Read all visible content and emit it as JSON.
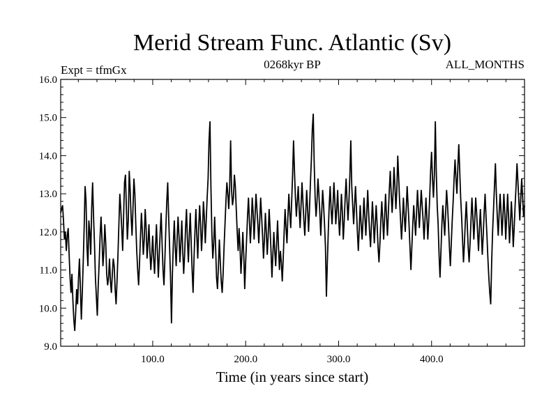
{
  "header": {
    "title": "Merid Stream Func. Atlantic (Sv)",
    "left": "Expt = tfmGx",
    "center": "0268kyr BP",
    "right": "ALL_MONTHS"
  },
  "chart_data": {
    "type": "line",
    "title": "Merid Stream Func. Atlantic (Sv)",
    "xlabel": "Time (in years since start)",
    "ylabel": "",
    "xlim": [
      1,
      500
    ],
    "ylim": [
      9.0,
      16.0
    ],
    "x_ticks": [
      100,
      200,
      300,
      400
    ],
    "x_tick_labels": [
      "100.0",
      "200.0",
      "300.0",
      "400.0"
    ],
    "y_ticks": [
      9.0,
      10.0,
      11.0,
      12.0,
      13.0,
      14.0,
      15.0,
      16.0
    ],
    "y_tick_labels": [
      "9.0",
      "10.0",
      "11.0",
      "12.0",
      "13.0",
      "14.0",
      "15.0",
      "16.0"
    ],
    "series": [
      {
        "name": "ALL_MONTHS",
        "x_start": 1,
        "x_step": 1,
        "color": "#000000",
        "values": [
          12.5,
          12.6,
          12.7,
          12.3,
          11.8,
          12.0,
          11.5,
          11.9,
          12.1,
          11.4,
          10.8,
          10.4,
          10.9,
          10.2,
          9.7,
          9.4,
          9.9,
          10.5,
          10.1,
          10.8,
          11.3,
          10.5,
          9.7,
          10.4,
          11.2,
          12.1,
          13.2,
          12.8,
          11.6,
          11.1,
          12.3,
          12.0,
          11.4,
          12.6,
          13.3,
          12.4,
          11.7,
          10.8,
          10.3,
          9.8,
          10.6,
          11.2,
          11.9,
          12.4,
          11.8,
          11.1,
          11.5,
          12.2,
          11.7,
          10.9,
          10.6,
          10.8,
          11.3,
          10.7,
          10.4,
          10.9,
          11.3,
          11.1,
          10.5,
          10.1,
          10.7,
          11.4,
          12.2,
          13.0,
          12.6,
          12.1,
          11.5,
          12.4,
          13.3,
          13.5,
          12.6,
          11.8,
          12.3,
          13.6,
          13.1,
          12.4,
          11.9,
          12.6,
          13.4,
          13.0,
          12.2,
          11.5,
          11.0,
          10.6,
          11.2,
          11.9,
          12.5,
          12.0,
          11.4,
          11.8,
          12.6,
          12.1,
          11.3,
          11.7,
          12.2,
          11.5,
          11.0,
          11.4,
          11.9,
          11.3,
          10.9,
          11.6,
          12.2,
          11.5,
          10.8,
          11.4,
          12.0,
          12.5,
          11.7,
          11.0,
          10.6,
          11.3,
          12.1,
          12.8,
          13.3,
          12.4,
          11.6,
          10.8,
          9.6,
          10.9,
          11.7,
          12.3,
          11.6,
          11.1,
          11.8,
          12.4,
          11.9,
          11.2,
          11.7,
          12.3,
          11.5,
          10.9,
          11.4,
          12.1,
          12.6,
          11.8,
          11.2,
          11.9,
          12.5,
          11.7,
          11.0,
          10.4,
          11.3,
          12.0,
          12.6,
          11.9,
          11.3,
          12.1,
          12.7,
          12.2,
          11.5,
          12.0,
          12.8,
          12.4,
          11.7,
          12.3,
          12.9,
          13.4,
          14.4,
          14.9,
          13.2,
          12.0,
          11.3,
          11.7,
          12.4,
          11.6,
          10.8,
          10.5,
          11.1,
          11.8,
          11.2,
          10.7,
          10.4,
          10.9,
          11.6,
          12.2,
          12.8,
          13.3,
          13.0,
          12.6,
          13.2,
          14.4,
          13.1,
          12.7,
          12.9,
          13.5,
          13.2,
          12.6,
          12.0,
          11.5,
          12.1,
          11.6,
          10.9,
          11.4,
          12.0,
          11.4,
          10.5,
          11.2,
          11.8,
          12.4,
          12.9,
          12.3,
          11.7,
          12.2,
          12.9,
          12.5,
          11.8,
          12.4,
          13.0,
          12.6,
          12.2,
          11.7,
          12.3,
          12.9,
          12.4,
          11.9,
          11.3,
          11.8,
          12.5,
          12.0,
          11.4,
          11.9,
          12.6,
          12.1,
          11.5,
          10.8,
          11.4,
          12.0,
          11.5,
          11.1,
          11.7,
          12.3,
          11.6,
          11.0,
          11.5,
          11.2,
          10.7,
          11.3,
          12.0,
          12.6,
          12.1,
          11.7,
          12.4,
          13.0,
          12.5,
          12.1,
          12.8,
          13.5,
          14.4,
          13.6,
          12.9,
          12.4,
          12.8,
          13.2,
          12.6,
          12.1,
          12.7,
          13.3,
          12.8,
          12.3,
          11.9,
          12.5,
          13.1,
          12.6,
          12.0,
          12.6,
          13.3,
          13.9,
          14.7,
          15.1,
          13.8,
          12.9,
          12.4,
          12.8,
          13.4,
          13.0,
          12.5,
          11.9,
          12.5,
          13.1,
          12.7,
          12.2,
          11.6,
          10.3,
          11.2,
          12.0,
          12.7,
          13.2,
          12.6,
          12.2,
          12.7,
          13.3,
          12.8,
          12.2,
          12.6,
          13.1,
          12.4,
          11.9,
          12.4,
          13.0,
          12.5,
          11.8,
          12.3,
          12.9,
          13.4,
          12.8,
          12.3,
          12.8,
          13.5,
          14.4,
          13.2,
          12.7,
          12.2,
          12.7,
          13.2,
          12.6,
          12.0,
          11.5,
          12.1,
          12.7,
          12.2,
          11.8,
          12.3,
          12.9,
          12.4,
          11.9,
          12.5,
          13.1,
          12.5,
          12.0,
          11.6,
          12.2,
          12.8,
          12.3,
          11.7,
          12.2,
          12.7,
          12.2,
          11.6,
          11.2,
          11.7,
          12.3,
          12.8,
          12.3,
          11.8,
          12.4,
          13.0,
          12.4,
          11.9,
          12.5,
          13.1,
          13.6,
          13.0,
          12.5,
          13.0,
          13.7,
          13.2,
          12.6,
          13.1,
          14.0,
          13.4,
          12.8,
          12.3,
          11.8,
          12.3,
          12.9,
          12.4,
          12.0,
          12.6,
          13.2,
          12.7,
          12.2,
          11.6,
          11.0,
          11.6,
          12.2,
          12.7,
          12.3,
          11.9,
          12.5,
          13.1,
          12.6,
          12.1,
          12.6,
          13.1,
          12.7,
          12.3,
          11.8,
          12.3,
          12.9,
          12.4,
          11.8,
          12.3,
          12.9,
          13.6,
          14.1,
          13.4,
          12.9,
          13.5,
          14.9,
          13.6,
          12.7,
          12.2,
          11.4,
          10.8,
          11.5,
          12.2,
          12.7,
          12.3,
          11.9,
          12.5,
          13.1,
          12.7,
          12.2,
          11.6,
          11.1,
          11.7,
          12.3,
          12.8,
          13.4,
          13.9,
          13.4,
          13.0,
          13.7,
          14.3,
          13.6,
          12.9,
          12.4,
          11.8,
          11.2,
          11.7,
          12.3,
          12.8,
          12.2,
          11.6,
          11.2,
          11.7,
          12.3,
          12.9,
          12.4,
          11.8,
          12.3,
          12.9,
          12.5,
          12.0,
          11.5,
          12.1,
          12.6,
          12.0,
          11.4,
          11.9,
          12.5,
          13.0,
          12.4,
          11.9,
          11.3,
          10.8,
          10.4,
          10.1,
          11.2,
          12.0,
          12.6,
          13.2,
          13.8,
          13.0,
          12.4,
          11.9,
          12.5,
          13.0,
          12.5,
          11.9,
          12.4,
          13.0,
          12.5,
          11.8,
          12.4,
          13.0,
          12.4,
          11.7,
          12.2,
          12.8,
          12.3,
          11.6,
          12.1,
          12.7,
          13.2,
          13.8,
          13.3,
          12.8,
          12.3,
          12.9,
          13.4,
          12.9,
          12.4,
          12.7
        ]
      }
    ]
  }
}
